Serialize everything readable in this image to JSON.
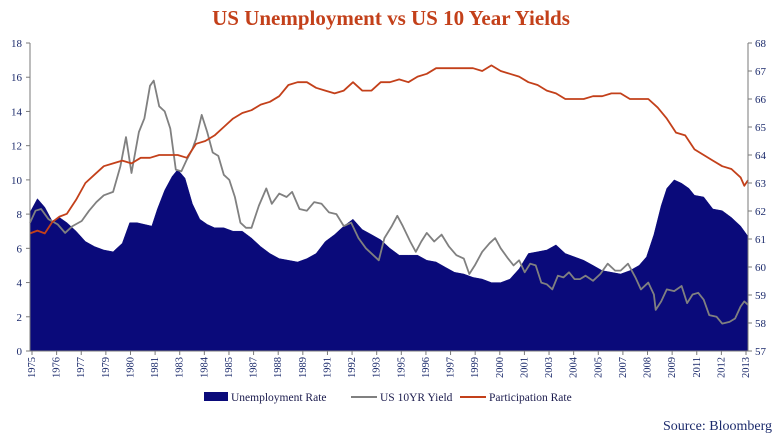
{
  "chart_data": {
    "type": "area+line",
    "title": "US Unemployment vs US 10 Year Yields",
    "source": "Source: Bloomberg",
    "colors": {
      "title": "#c3401a",
      "unemployment": "#0a0a7a",
      "yield": "#808080",
      "participation": "#c3401a",
      "axis": "#1b2a6b"
    },
    "x_range": [
      1975.0,
      2013.9
    ],
    "x_tick_labels": [
      "1975",
      "1976",
      "1977",
      "1979",
      "1980",
      "1981",
      "1983",
      "1984",
      "1985",
      "1987",
      "1988",
      "1989",
      "1991",
      "1992",
      "1993",
      "1995",
      "1996",
      "1997",
      "1999",
      "2000",
      "2001",
      "2003",
      "2004",
      "2005",
      "2007",
      "2008",
      "2009",
      "2011",
      "2012",
      "2013"
    ],
    "y_left": {
      "range": [
        0,
        18
      ],
      "ticks": [
        "0",
        "2",
        "4",
        "6",
        "8",
        "10",
        "12",
        "14",
        "16",
        "18"
      ]
    },
    "y_right": {
      "range": [
        57,
        68
      ],
      "ticks": [
        "57",
        "58",
        "59",
        "60",
        "61",
        "62",
        "63",
        "64",
        "65",
        "66",
        "67",
        "68"
      ]
    },
    "series": [
      {
        "name": "Unemployment Rate",
        "kind": "area",
        "axis": "left",
        "points": [
          [
            1975.0,
            8.1
          ],
          [
            1975.4,
            8.9
          ],
          [
            1975.8,
            8.4
          ],
          [
            1976.2,
            7.6
          ],
          [
            1976.6,
            7.8
          ],
          [
            1977.0,
            7.5
          ],
          [
            1977.5,
            7.0
          ],
          [
            1978.0,
            6.4
          ],
          [
            1978.5,
            6.1
          ],
          [
            1979.0,
            5.9
          ],
          [
            1979.5,
            5.8
          ],
          [
            1980.0,
            6.3
          ],
          [
            1980.4,
            7.5
          ],
          [
            1980.8,
            7.5
          ],
          [
            1981.2,
            7.4
          ],
          [
            1981.6,
            7.3
          ],
          [
            1981.9,
            8.3
          ],
          [
            1982.3,
            9.4
          ],
          [
            1982.7,
            10.2
          ],
          [
            1983.0,
            10.6
          ],
          [
            1983.4,
            10.1
          ],
          [
            1983.8,
            8.6
          ],
          [
            1984.2,
            7.7
          ],
          [
            1984.6,
            7.4
          ],
          [
            1985.0,
            7.2
          ],
          [
            1985.5,
            7.2
          ],
          [
            1986.0,
            7.0
          ],
          [
            1986.5,
            7.0
          ],
          [
            1987.0,
            6.6
          ],
          [
            1987.5,
            6.1
          ],
          [
            1988.0,
            5.7
          ],
          [
            1988.5,
            5.4
          ],
          [
            1989.0,
            5.3
          ],
          [
            1989.5,
            5.2
          ],
          [
            1990.0,
            5.4
          ],
          [
            1990.5,
            5.7
          ],
          [
            1991.0,
            6.4
          ],
          [
            1991.5,
            6.8
          ],
          [
            1992.0,
            7.3
          ],
          [
            1992.5,
            7.7
          ],
          [
            1993.0,
            7.1
          ],
          [
            1993.5,
            6.8
          ],
          [
            1994.0,
            6.5
          ],
          [
            1994.5,
            6.0
          ],
          [
            1995.0,
            5.6
          ],
          [
            1995.5,
            5.6
          ],
          [
            1996.0,
            5.6
          ],
          [
            1996.5,
            5.3
          ],
          [
            1997.0,
            5.2
          ],
          [
            1997.5,
            4.9
          ],
          [
            1998.0,
            4.6
          ],
          [
            1998.5,
            4.5
          ],
          [
            1999.0,
            4.3
          ],
          [
            1999.5,
            4.2
          ],
          [
            2000.0,
            4.0
          ],
          [
            2000.5,
            4.0
          ],
          [
            2001.0,
            4.2
          ],
          [
            2001.5,
            4.8
          ],
          [
            2002.0,
            5.7
          ],
          [
            2002.5,
            5.8
          ],
          [
            2003.0,
            5.9
          ],
          [
            2003.5,
            6.2
          ],
          [
            2004.0,
            5.7
          ],
          [
            2004.5,
            5.5
          ],
          [
            2005.0,
            5.3
          ],
          [
            2005.5,
            5.0
          ],
          [
            2006.0,
            4.7
          ],
          [
            2006.5,
            4.6
          ],
          [
            2007.0,
            4.5
          ],
          [
            2007.5,
            4.7
          ],
          [
            2008.0,
            5.0
          ],
          [
            2008.4,
            5.5
          ],
          [
            2008.8,
            6.8
          ],
          [
            2009.2,
            8.5
          ],
          [
            2009.5,
            9.5
          ],
          [
            2009.9,
            10.0
          ],
          [
            2010.3,
            9.8
          ],
          [
            2010.7,
            9.5
          ],
          [
            2011.0,
            9.1
          ],
          [
            2011.5,
            9.0
          ],
          [
            2012.0,
            8.3
          ],
          [
            2012.5,
            8.2
          ],
          [
            2013.0,
            7.8
          ],
          [
            2013.5,
            7.3
          ],
          [
            2013.9,
            6.7
          ]
        ]
      },
      {
        "name": "US 10YR Yield",
        "kind": "line",
        "axis": "left",
        "points": [
          [
            1975.0,
            7.5
          ],
          [
            1975.3,
            8.2
          ],
          [
            1975.6,
            8.3
          ],
          [
            1976.0,
            7.7
          ],
          [
            1976.5,
            7.4
          ],
          [
            1976.9,
            6.9
          ],
          [
            1977.3,
            7.3
          ],
          [
            1977.8,
            7.6
          ],
          [
            1978.2,
            8.2
          ],
          [
            1978.6,
            8.7
          ],
          [
            1979.0,
            9.1
          ],
          [
            1979.5,
            9.3
          ],
          [
            1979.9,
            10.8
          ],
          [
            1980.2,
            12.5
          ],
          [
            1980.5,
            10.4
          ],
          [
            1980.9,
            12.8
          ],
          [
            1981.2,
            13.6
          ],
          [
            1981.5,
            15.5
          ],
          [
            1981.7,
            15.8
          ],
          [
            1982.0,
            14.3
          ],
          [
            1982.3,
            14.0
          ],
          [
            1982.6,
            13.0
          ],
          [
            1982.9,
            10.6
          ],
          [
            1983.2,
            10.5
          ],
          [
            1983.5,
            11.2
          ],
          [
            1983.8,
            11.8
          ],
          [
            1984.0,
            12.4
          ],
          [
            1984.3,
            13.8
          ],
          [
            1984.6,
            12.8
          ],
          [
            1984.9,
            11.6
          ],
          [
            1985.2,
            11.4
          ],
          [
            1985.5,
            10.3
          ],
          [
            1985.8,
            10.0
          ],
          [
            1986.1,
            9.0
          ],
          [
            1986.4,
            7.5
          ],
          [
            1986.7,
            7.2
          ],
          [
            1987.0,
            7.2
          ],
          [
            1987.4,
            8.5
          ],
          [
            1987.8,
            9.5
          ],
          [
            1988.1,
            8.6
          ],
          [
            1988.5,
            9.2
          ],
          [
            1988.9,
            9.0
          ],
          [
            1989.2,
            9.3
          ],
          [
            1989.6,
            8.3
          ],
          [
            1990.0,
            8.2
          ],
          [
            1990.4,
            8.7
          ],
          [
            1990.8,
            8.6
          ],
          [
            1991.2,
            8.1
          ],
          [
            1991.6,
            8.0
          ],
          [
            1992.0,
            7.3
          ],
          [
            1992.4,
            7.5
          ],
          [
            1992.8,
            6.6
          ],
          [
            1993.2,
            6.0
          ],
          [
            1993.6,
            5.6
          ],
          [
            1993.9,
            5.3
          ],
          [
            1994.2,
            6.6
          ],
          [
            1994.6,
            7.3
          ],
          [
            1994.9,
            7.9
          ],
          [
            1995.2,
            7.3
          ],
          [
            1995.6,
            6.4
          ],
          [
            1995.9,
            5.8
          ],
          [
            1996.2,
            6.4
          ],
          [
            1996.5,
            6.9
          ],
          [
            1996.9,
            6.4
          ],
          [
            1997.3,
            6.8
          ],
          [
            1997.7,
            6.1
          ],
          [
            1998.1,
            5.6
          ],
          [
            1998.5,
            5.4
          ],
          [
            1998.8,
            4.5
          ],
          [
            1999.1,
            5.0
          ],
          [
            1999.5,
            5.8
          ],
          [
            1999.9,
            6.3
          ],
          [
            2000.2,
            6.6
          ],
          [
            2000.5,
            6.0
          ],
          [
            2000.9,
            5.4
          ],
          [
            2001.2,
            5.0
          ],
          [
            2001.5,
            5.3
          ],
          [
            2001.8,
            4.6
          ],
          [
            2002.1,
            5.1
          ],
          [
            2002.4,
            5.0
          ],
          [
            2002.7,
            4.0
          ],
          [
            2003.0,
            3.9
          ],
          [
            2003.3,
            3.6
          ],
          [
            2003.6,
            4.4
          ],
          [
            2003.9,
            4.3
          ],
          [
            2004.2,
            4.6
          ],
          [
            2004.5,
            4.2
          ],
          [
            2004.8,
            4.2
          ],
          [
            2005.1,
            4.4
          ],
          [
            2005.5,
            4.1
          ],
          [
            2005.9,
            4.5
          ],
          [
            2006.3,
            5.1
          ],
          [
            2006.7,
            4.7
          ],
          [
            2007.0,
            4.7
          ],
          [
            2007.4,
            5.1
          ],
          [
            2007.8,
            4.3
          ],
          [
            2008.1,
            3.6
          ],
          [
            2008.5,
            4.0
          ],
          [
            2008.8,
            3.3
          ],
          [
            2008.9,
            2.4
          ],
          [
            2009.2,
            2.9
          ],
          [
            2009.5,
            3.6
          ],
          [
            2009.9,
            3.5
          ],
          [
            2010.3,
            3.8
          ],
          [
            2010.6,
            2.8
          ],
          [
            2010.9,
            3.3
          ],
          [
            2011.2,
            3.4
          ],
          [
            2011.5,
            3.0
          ],
          [
            2011.8,
            2.1
          ],
          [
            2012.2,
            2.0
          ],
          [
            2012.5,
            1.6
          ],
          [
            2012.9,
            1.7
          ],
          [
            2013.2,
            1.9
          ],
          [
            2013.5,
            2.6
          ],
          [
            2013.7,
            2.9
          ],
          [
            2013.9,
            2.7
          ]
        ]
      },
      {
        "name": "Participation Rate",
        "kind": "line",
        "axis": "right",
        "points": [
          [
            1975.0,
            61.2
          ],
          [
            1975.4,
            61.3
          ],
          [
            1975.8,
            61.2
          ],
          [
            1976.2,
            61.6
          ],
          [
            1976.6,
            61.8
          ],
          [
            1977.0,
            61.9
          ],
          [
            1977.5,
            62.4
          ],
          [
            1978.0,
            63.0
          ],
          [
            1978.5,
            63.3
          ],
          [
            1979.0,
            63.6
          ],
          [
            1979.5,
            63.7
          ],
          [
            1980.0,
            63.8
          ],
          [
            1980.5,
            63.7
          ],
          [
            1981.0,
            63.9
          ],
          [
            1981.5,
            63.9
          ],
          [
            1982.0,
            64.0
          ],
          [
            1982.5,
            64.0
          ],
          [
            1983.0,
            64.0
          ],
          [
            1983.5,
            63.9
          ],
          [
            1984.0,
            64.4
          ],
          [
            1984.5,
            64.5
          ],
          [
            1985.0,
            64.7
          ],
          [
            1985.5,
            65.0
          ],
          [
            1986.0,
            65.3
          ],
          [
            1986.5,
            65.5
          ],
          [
            1987.0,
            65.6
          ],
          [
            1987.5,
            65.8
          ],
          [
            1988.0,
            65.9
          ],
          [
            1988.5,
            66.1
          ],
          [
            1989.0,
            66.5
          ],
          [
            1989.5,
            66.6
          ],
          [
            1990.0,
            66.6
          ],
          [
            1990.5,
            66.4
          ],
          [
            1991.0,
            66.3
          ],
          [
            1991.5,
            66.2
          ],
          [
            1992.0,
            66.3
          ],
          [
            1992.5,
            66.6
          ],
          [
            1993.0,
            66.3
          ],
          [
            1993.5,
            66.3
          ],
          [
            1994.0,
            66.6
          ],
          [
            1994.5,
            66.6
          ],
          [
            1995.0,
            66.7
          ],
          [
            1995.5,
            66.6
          ],
          [
            1996.0,
            66.8
          ],
          [
            1996.5,
            66.9
          ],
          [
            1997.0,
            67.1
          ],
          [
            1997.5,
            67.1
          ],
          [
            1998.0,
            67.1
          ],
          [
            1998.5,
            67.1
          ],
          [
            1999.0,
            67.1
          ],
          [
            1999.5,
            67.0
          ],
          [
            2000.0,
            67.2
          ],
          [
            2000.5,
            67.0
          ],
          [
            2001.0,
            66.9
          ],
          [
            2001.5,
            66.8
          ],
          [
            2002.0,
            66.6
          ],
          [
            2002.5,
            66.5
          ],
          [
            2003.0,
            66.3
          ],
          [
            2003.5,
            66.2
          ],
          [
            2004.0,
            66.0
          ],
          [
            2004.5,
            66.0
          ],
          [
            2005.0,
            66.0
          ],
          [
            2005.5,
            66.1
          ],
          [
            2006.0,
            66.1
          ],
          [
            2006.5,
            66.2
          ],
          [
            2007.0,
            66.2
          ],
          [
            2007.5,
            66.0
          ],
          [
            2008.0,
            66.0
          ],
          [
            2008.5,
            66.0
          ],
          [
            2009.0,
            65.7
          ],
          [
            2009.5,
            65.3
          ],
          [
            2010.0,
            64.8
          ],
          [
            2010.5,
            64.7
          ],
          [
            2011.0,
            64.2
          ],
          [
            2011.5,
            64.0
          ],
          [
            2012.0,
            63.8
          ],
          [
            2012.5,
            63.6
          ],
          [
            2013.0,
            63.5
          ],
          [
            2013.5,
            63.2
          ],
          [
            2013.7,
            62.9
          ],
          [
            2013.9,
            63.1
          ]
        ]
      }
    ],
    "legend": {
      "position": "bottom",
      "entries": [
        "Unemployment Rate",
        "US 10YR Yield",
        "Participation Rate"
      ]
    },
    "grid": false
  }
}
